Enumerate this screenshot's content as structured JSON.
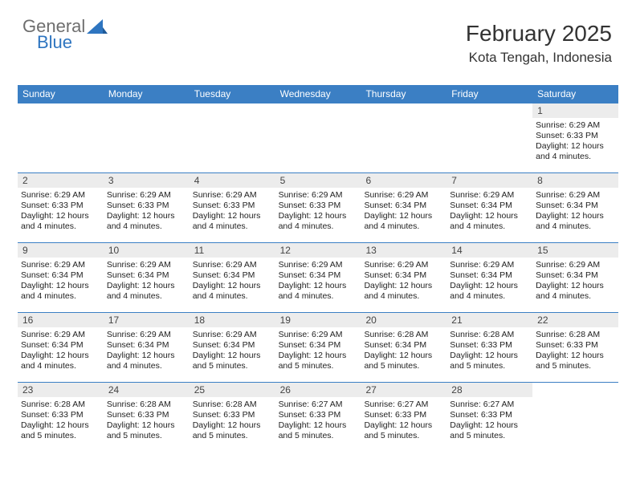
{
  "logo": {
    "word1": "General",
    "word2": "Blue",
    "grey": "#6e6e6e",
    "blue": "#2e75c0",
    "sail_fill": "#2e75c0"
  },
  "header": {
    "title": "February 2025",
    "location": "Kota Tengah, Indonesia"
  },
  "colors": {
    "header_bar": "#3b7fc4",
    "header_text": "#ffffff",
    "daynum_bg": "#ececec",
    "week_border": "#3b7fc4",
    "body_text": "#222222"
  },
  "days_of_week": [
    "Sunday",
    "Monday",
    "Tuesday",
    "Wednesday",
    "Thursday",
    "Friday",
    "Saturday"
  ],
  "weeks": [
    [
      {
        "empty": true
      },
      {
        "empty": true
      },
      {
        "empty": true
      },
      {
        "empty": true
      },
      {
        "empty": true
      },
      {
        "empty": true
      },
      {
        "n": "1",
        "sunrise": "Sunrise: 6:29 AM",
        "sunset": "Sunset: 6:33 PM",
        "daylight": "Daylight: 12 hours and 4 minutes."
      }
    ],
    [
      {
        "n": "2",
        "sunrise": "Sunrise: 6:29 AM",
        "sunset": "Sunset: 6:33 PM",
        "daylight": "Daylight: 12 hours and 4 minutes."
      },
      {
        "n": "3",
        "sunrise": "Sunrise: 6:29 AM",
        "sunset": "Sunset: 6:33 PM",
        "daylight": "Daylight: 12 hours and 4 minutes."
      },
      {
        "n": "4",
        "sunrise": "Sunrise: 6:29 AM",
        "sunset": "Sunset: 6:33 PM",
        "daylight": "Daylight: 12 hours and 4 minutes."
      },
      {
        "n": "5",
        "sunrise": "Sunrise: 6:29 AM",
        "sunset": "Sunset: 6:33 PM",
        "daylight": "Daylight: 12 hours and 4 minutes."
      },
      {
        "n": "6",
        "sunrise": "Sunrise: 6:29 AM",
        "sunset": "Sunset: 6:34 PM",
        "daylight": "Daylight: 12 hours and 4 minutes."
      },
      {
        "n": "7",
        "sunrise": "Sunrise: 6:29 AM",
        "sunset": "Sunset: 6:34 PM",
        "daylight": "Daylight: 12 hours and 4 minutes."
      },
      {
        "n": "8",
        "sunrise": "Sunrise: 6:29 AM",
        "sunset": "Sunset: 6:34 PM",
        "daylight": "Daylight: 12 hours and 4 minutes."
      }
    ],
    [
      {
        "n": "9",
        "sunrise": "Sunrise: 6:29 AM",
        "sunset": "Sunset: 6:34 PM",
        "daylight": "Daylight: 12 hours and 4 minutes."
      },
      {
        "n": "10",
        "sunrise": "Sunrise: 6:29 AM",
        "sunset": "Sunset: 6:34 PM",
        "daylight": "Daylight: 12 hours and 4 minutes."
      },
      {
        "n": "11",
        "sunrise": "Sunrise: 6:29 AM",
        "sunset": "Sunset: 6:34 PM",
        "daylight": "Daylight: 12 hours and 4 minutes."
      },
      {
        "n": "12",
        "sunrise": "Sunrise: 6:29 AM",
        "sunset": "Sunset: 6:34 PM",
        "daylight": "Daylight: 12 hours and 4 minutes."
      },
      {
        "n": "13",
        "sunrise": "Sunrise: 6:29 AM",
        "sunset": "Sunset: 6:34 PM",
        "daylight": "Daylight: 12 hours and 4 minutes."
      },
      {
        "n": "14",
        "sunrise": "Sunrise: 6:29 AM",
        "sunset": "Sunset: 6:34 PM",
        "daylight": "Daylight: 12 hours and 4 minutes."
      },
      {
        "n": "15",
        "sunrise": "Sunrise: 6:29 AM",
        "sunset": "Sunset: 6:34 PM",
        "daylight": "Daylight: 12 hours and 4 minutes."
      }
    ],
    [
      {
        "n": "16",
        "sunrise": "Sunrise: 6:29 AM",
        "sunset": "Sunset: 6:34 PM",
        "daylight": "Daylight: 12 hours and 4 minutes."
      },
      {
        "n": "17",
        "sunrise": "Sunrise: 6:29 AM",
        "sunset": "Sunset: 6:34 PM",
        "daylight": "Daylight: 12 hours and 4 minutes."
      },
      {
        "n": "18",
        "sunrise": "Sunrise: 6:29 AM",
        "sunset": "Sunset: 6:34 PM",
        "daylight": "Daylight: 12 hours and 5 minutes."
      },
      {
        "n": "19",
        "sunrise": "Sunrise: 6:29 AM",
        "sunset": "Sunset: 6:34 PM",
        "daylight": "Daylight: 12 hours and 5 minutes."
      },
      {
        "n": "20",
        "sunrise": "Sunrise: 6:28 AM",
        "sunset": "Sunset: 6:34 PM",
        "daylight": "Daylight: 12 hours and 5 minutes."
      },
      {
        "n": "21",
        "sunrise": "Sunrise: 6:28 AM",
        "sunset": "Sunset: 6:33 PM",
        "daylight": "Daylight: 12 hours and 5 minutes."
      },
      {
        "n": "22",
        "sunrise": "Sunrise: 6:28 AM",
        "sunset": "Sunset: 6:33 PM",
        "daylight": "Daylight: 12 hours and 5 minutes."
      }
    ],
    [
      {
        "n": "23",
        "sunrise": "Sunrise: 6:28 AM",
        "sunset": "Sunset: 6:33 PM",
        "daylight": "Daylight: 12 hours and 5 minutes."
      },
      {
        "n": "24",
        "sunrise": "Sunrise: 6:28 AM",
        "sunset": "Sunset: 6:33 PM",
        "daylight": "Daylight: 12 hours and 5 minutes."
      },
      {
        "n": "25",
        "sunrise": "Sunrise: 6:28 AM",
        "sunset": "Sunset: 6:33 PM",
        "daylight": "Daylight: 12 hours and 5 minutes."
      },
      {
        "n": "26",
        "sunrise": "Sunrise: 6:27 AM",
        "sunset": "Sunset: 6:33 PM",
        "daylight": "Daylight: 12 hours and 5 minutes."
      },
      {
        "n": "27",
        "sunrise": "Sunrise: 6:27 AM",
        "sunset": "Sunset: 6:33 PM",
        "daylight": "Daylight: 12 hours and 5 minutes."
      },
      {
        "n": "28",
        "sunrise": "Sunrise: 6:27 AM",
        "sunset": "Sunset: 6:33 PM",
        "daylight": "Daylight: 12 hours and 5 minutes."
      },
      {
        "empty": true
      }
    ]
  ]
}
